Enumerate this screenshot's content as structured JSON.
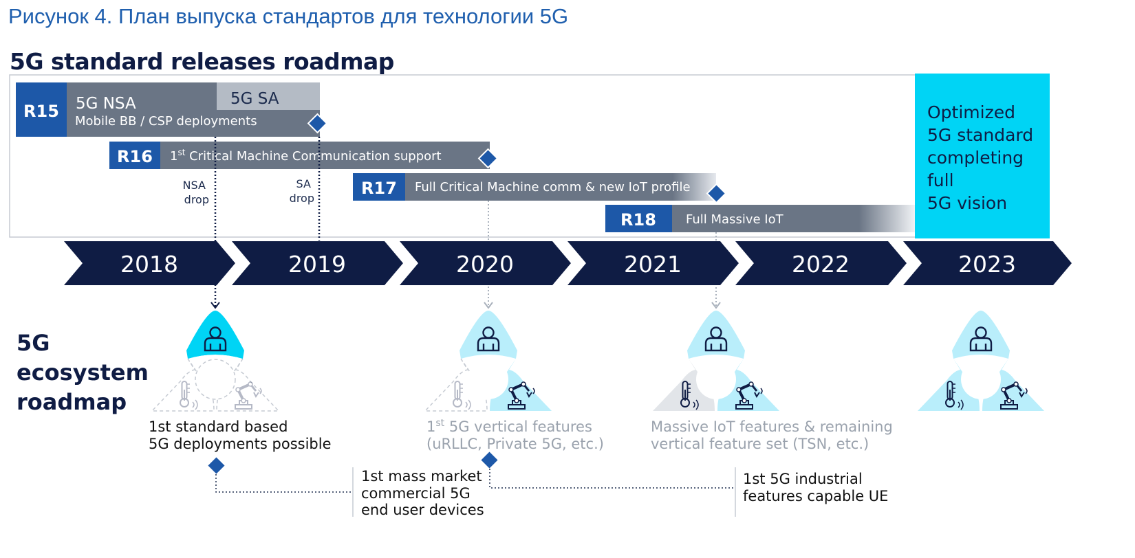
{
  "caption": "Рисунок 4. План выпуска стандартов для технологии 5G",
  "roadmap_title": "5G standard releases roadmap",
  "ecosystem_title": [
    "5G",
    "ecosystem",
    "roadmap"
  ],
  "releases": {
    "r15": {
      "label": "R15",
      "nsa": "5G NSA",
      "sa": "5G SA",
      "desc": "Mobile BB / CSP deployments"
    },
    "r16": {
      "label": "R16",
      "desc_pre": "1",
      "desc_sup": "st",
      "desc_post": " Critical Machine Communication support"
    },
    "r17": {
      "label": "R17",
      "desc": "Full Critical Machine comm & new IoT profile"
    },
    "r18": {
      "label": "R18",
      "desc": "Full Massive IoT"
    }
  },
  "vision_box": [
    "Optimized",
    "5G standard",
    "completing",
    "full",
    "5G vision"
  ],
  "drops": {
    "nsa": [
      "NSA",
      "drop"
    ],
    "sa": [
      "SA",
      "drop"
    ]
  },
  "years": [
    "2018",
    "2019",
    "2020",
    "2021",
    "2022",
    "2023"
  ],
  "milestones": {
    "m1": [
      "1st standard based",
      "5G deployments possible"
    ],
    "m2_line1_pre": "1",
    "m2_line1_sup": "st",
    "m2_line1_post": " 5G vertical features",
    "m2_line2": "(uRLLC, Private 5G, etc.)",
    "m3": [
      "Massive IoT features & remaining",
      "vertical feature set (TSN, etc.)"
    ],
    "d1": [
      "1st mass market",
      "commercial 5G",
      "end user devices"
    ],
    "d2": [
      "1st 5G industrial",
      "features capable UE"
    ]
  },
  "colors": {
    "release_blue": "#1d58a8",
    "bar_gray": "#6a7585",
    "sa_gray": "#b4bbc5",
    "navy": "#0f1c44",
    "cyan": "#00d4f5",
    "light_cyan": "#b9eefb",
    "diamond": "#1d58a8"
  }
}
